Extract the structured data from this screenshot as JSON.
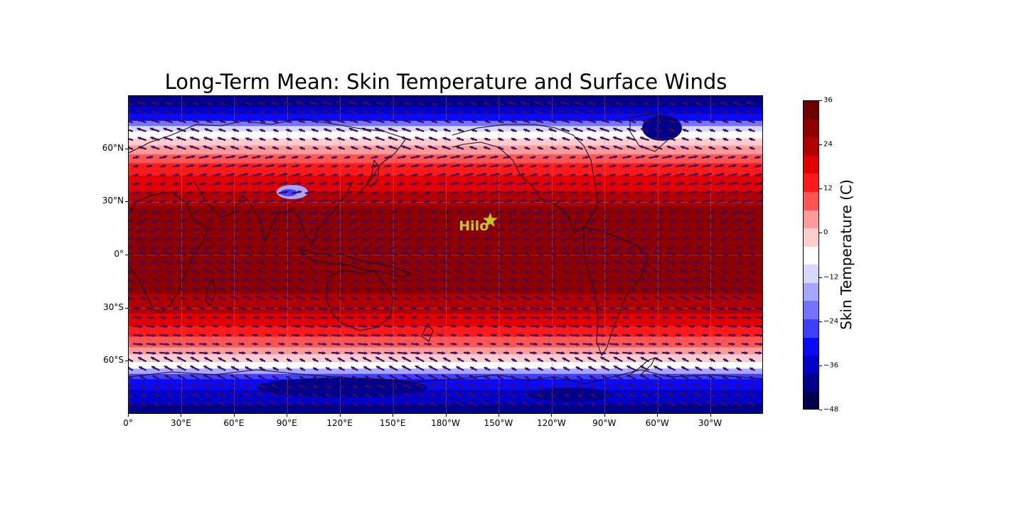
{
  "figure": {
    "title": "Long-Term Mean: Skin Temperature and Surface Winds",
    "marker_label": "Hilo",
    "marker_color": "#c8c41a",
    "marker_lon": -155.1,
    "marker_lat": 19.7,
    "y_ticks": [
      "60°N",
      "30°N",
      "0°",
      "30°S",
      "60°S"
    ],
    "y_tick_values": [
      60,
      30,
      0,
      -30,
      -60
    ],
    "x_ticks": [
      "0°",
      "30°E",
      "60°E",
      "90°E",
      "120°E",
      "150°E",
      "180°W",
      "150°W",
      "120°W",
      "90°W",
      "60°W",
      "30°W"
    ],
    "x_tick_values": [
      0,
      30,
      60,
      90,
      120,
      150,
      180,
      210,
      240,
      270,
      300,
      330
    ],
    "lon_range": [
      0,
      357.5
    ],
    "lat_range": [
      -90,
      90
    ],
    "vector_color": "#3d0a5e",
    "gridlines": true,
    "projection": "Plate Carree, centered 180°"
  },
  "colorbar": {
    "label": "Skin Temperature (C)",
    "tick_labels": [
      "36",
      "24",
      "12",
      "0",
      "−12",
      "−24",
      "−36",
      "−48"
    ],
    "tick_values": [
      36,
      24,
      12,
      0,
      -12,
      -24,
      -36,
      -48
    ],
    "range": [
      -48,
      36
    ],
    "levels": [
      -48,
      -42,
      -36,
      -30,
      -24,
      -18,
      -12,
      -6,
      0,
      6,
      12,
      18,
      24,
      30,
      36
    ],
    "colors": [
      "#00004d",
      "#00008a",
      "#0000c8",
      "#0a0af5",
      "#3f3fff",
      "#7373ff",
      "#a6a6ff",
      "#d7d7ff",
      "#ffffff",
      "#ffcdcd",
      "#ff9a9a",
      "#ff5454",
      "#ff1a1a",
      "#e00000",
      "#b00000",
      "#8c0000",
      "#6a0000"
    ]
  }
}
